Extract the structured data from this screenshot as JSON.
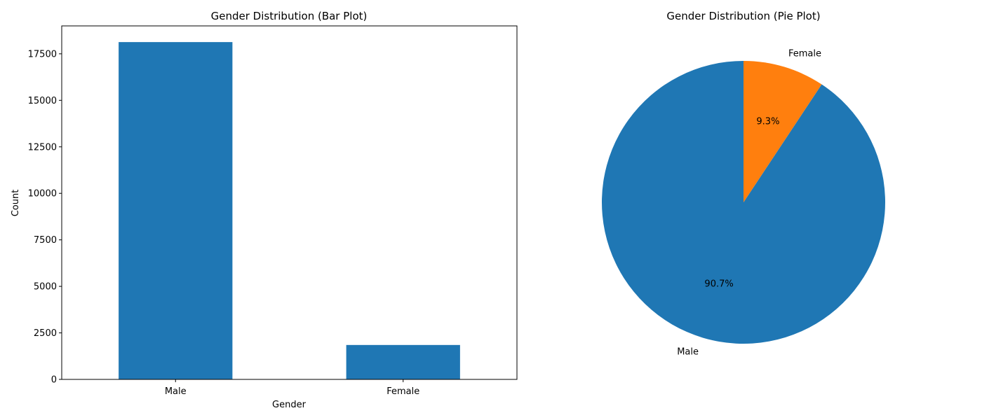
{
  "chart_data": [
    {
      "type": "bar",
      "title": "Gender Distribution (Bar Plot)",
      "xlabel": "Gender",
      "ylabel": "Count",
      "categories": [
        "Male",
        "Female"
      ],
      "values": [
        18130,
        1850
      ],
      "ylim": [
        0,
        19000
      ],
      "yticks": [
        0,
        2500,
        5000,
        7500,
        10000,
        12500,
        15000,
        17500
      ],
      "color": "#1f77b4",
      "grid": false
    },
    {
      "type": "pie",
      "title": "Gender Distribution (Pie Plot)",
      "labels": [
        "Male",
        "Female"
      ],
      "values": [
        90.7,
        9.3
      ],
      "autopct_labels": [
        "90.7%",
        "9.3%"
      ],
      "colors": [
        "#1f77b4",
        "#ff7f0e"
      ],
      "start_angle": 90
    }
  ]
}
